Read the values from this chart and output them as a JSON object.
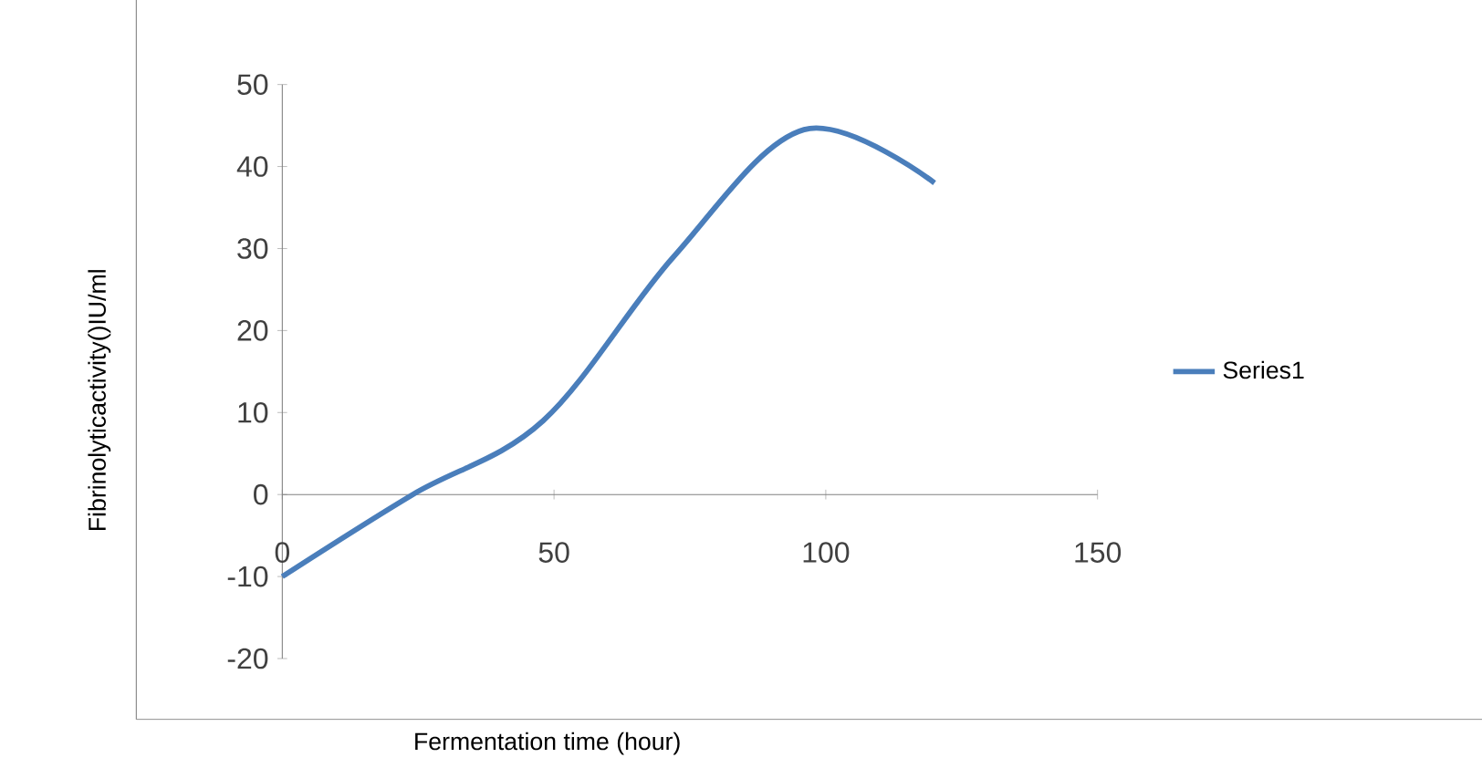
{
  "chart_data": {
    "type": "line",
    "xlabel": "Fermentation time (hour)",
    "ylabel": "Fibrinolyticactivity()IU/ml",
    "series": [
      {
        "name": "Series1",
        "color": "#4a7ebb",
        "x": [
          0,
          24,
          48,
          72,
          96,
          120
        ],
        "values": [
          -10,
          0,
          9,
          29,
          44.5,
          38
        ]
      }
    ],
    "xlim": [
      0,
      150
    ],
    "xticks": [
      0,
      50,
      100,
      150
    ],
    "ylim": [
      -20,
      50
    ],
    "yticks": [
      -20,
      -10,
      0,
      10,
      20,
      30,
      40,
      50
    ],
    "grid": false,
    "legend": "right",
    "marker": "none",
    "line_style": "solid"
  }
}
